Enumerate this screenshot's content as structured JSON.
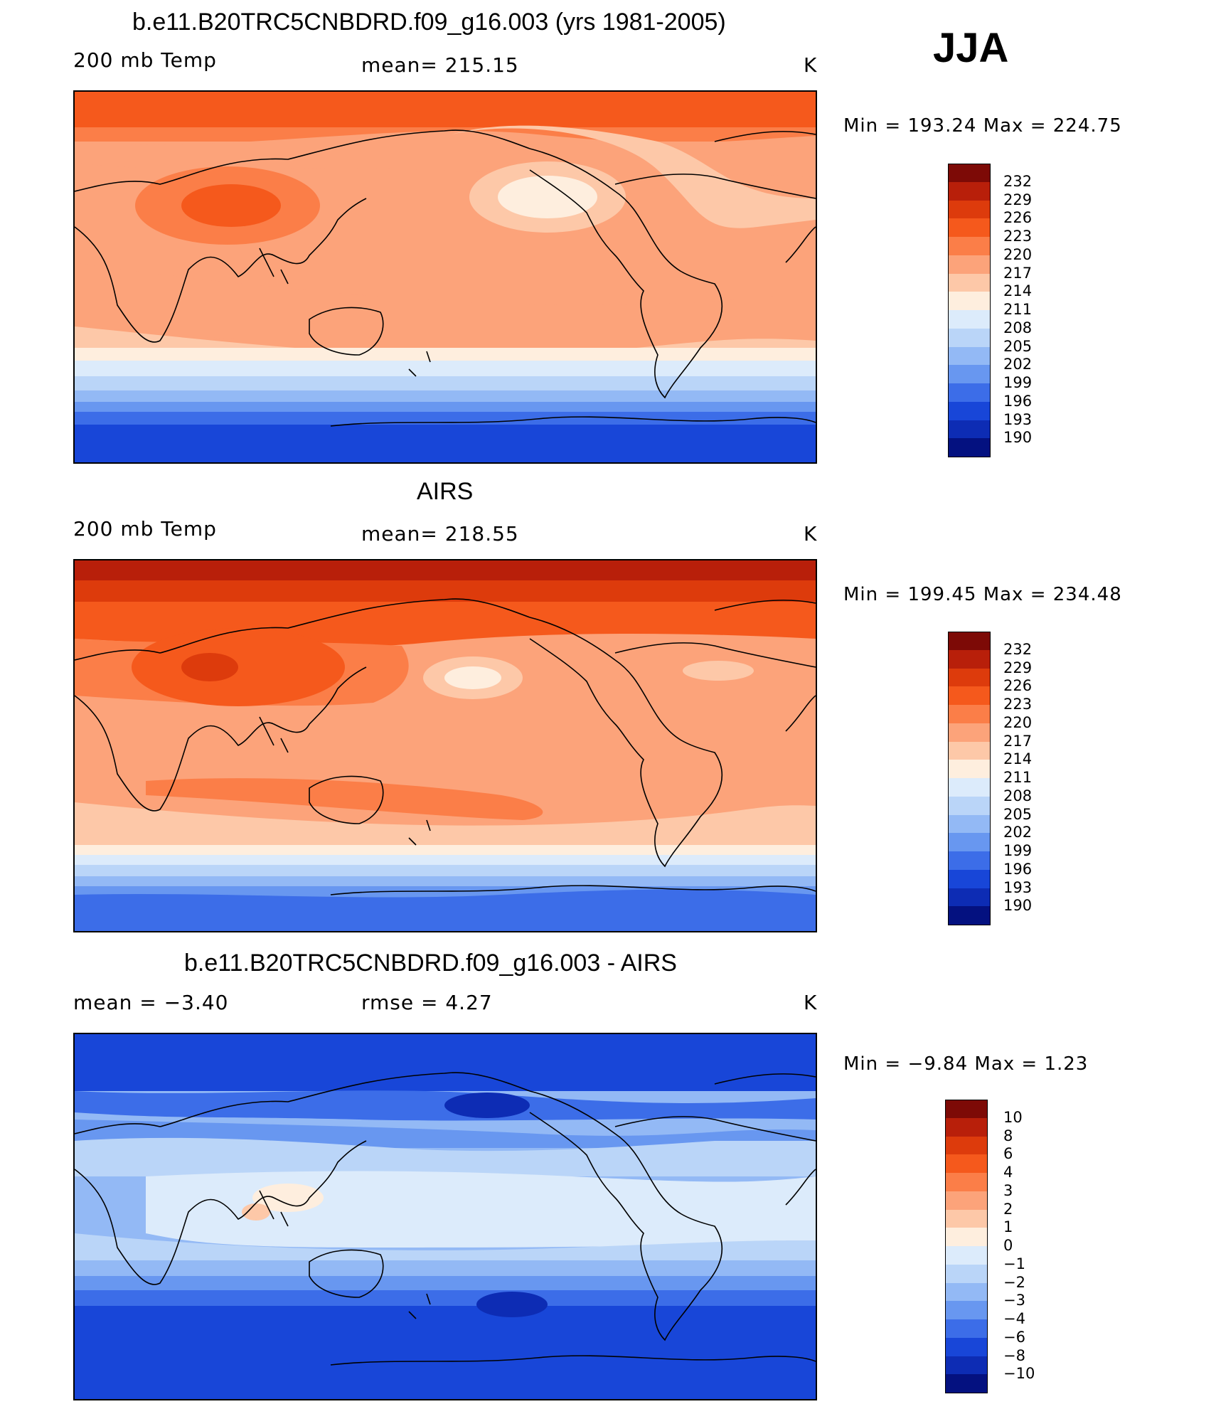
{
  "season": "JJA",
  "panels": [
    {
      "title": "b.e11.B20TRC5CNBDRD.f09_g16.003 (yrs 1981-2005)",
      "left_label": "200 mb Temp",
      "center_label": "mean=  215.15",
      "units": "K",
      "minmax": "Min  =  193.24  Max  =  224.75",
      "field": "model"
    },
    {
      "title": "AIRS",
      "left_label": "200 mb Temp",
      "center_label": "mean=  218.55",
      "units": "K",
      "minmax": "Min  =  199.45  Max  =  234.48",
      "field": "obs"
    },
    {
      "title": "b.e11.B20TRC5CNBDRD.f09_g16.003 - AIRS",
      "left_label": "mean  =    −3.40",
      "center_label": "rmse  =     4.27",
      "units": "K",
      "minmax": "Min  =    −9.84  Max  =     1.23",
      "field": "diff"
    }
  ],
  "colorbars": [
    {
      "labels": [
        "232",
        "229",
        "226",
        "223",
        "220",
        "217",
        "214",
        "211",
        "208",
        "205",
        "202",
        "199",
        "196",
        "193",
        "190"
      ],
      "colors": [
        "#7d0a06",
        "#b81f0a",
        "#dd3b0c",
        "#f5591c",
        "#fb7e48",
        "#fca37a",
        "#fdc8a8",
        "#feeede",
        "#dcebfb",
        "#bad5f8",
        "#93b9f5",
        "#6897f0",
        "#3c6de8",
        "#1846d8",
        "#0d2cb4",
        "#041180"
      ]
    },
    {
      "labels": [
        "232",
        "229",
        "226",
        "223",
        "220",
        "217",
        "214",
        "211",
        "208",
        "205",
        "202",
        "199",
        "196",
        "193",
        "190"
      ],
      "colors": [
        "#7d0a06",
        "#b81f0a",
        "#dd3b0c",
        "#f5591c",
        "#fb7e48",
        "#fca37a",
        "#fdc8a8",
        "#feeede",
        "#dcebfb",
        "#bad5f8",
        "#93b9f5",
        "#6897f0",
        "#3c6de8",
        "#1846d8",
        "#0d2cb4",
        "#041180"
      ]
    },
    {
      "labels": [
        "10",
        "8",
        "6",
        "4",
        "3",
        "2",
        "1",
        "0",
        "−1",
        "−2",
        "−3",
        "−4",
        "−6",
        "−8",
        "−10"
      ],
      "colors": [
        "#7d0a06",
        "#b81f0a",
        "#dd3b0c",
        "#f5591c",
        "#fb7e48",
        "#fca37a",
        "#fdc8a8",
        "#feeede",
        "#dcebfb",
        "#bad5f8",
        "#93b9f5",
        "#6897f0",
        "#3c6de8",
        "#1846d8",
        "#0d2cb4",
        "#041180"
      ]
    }
  ]
}
